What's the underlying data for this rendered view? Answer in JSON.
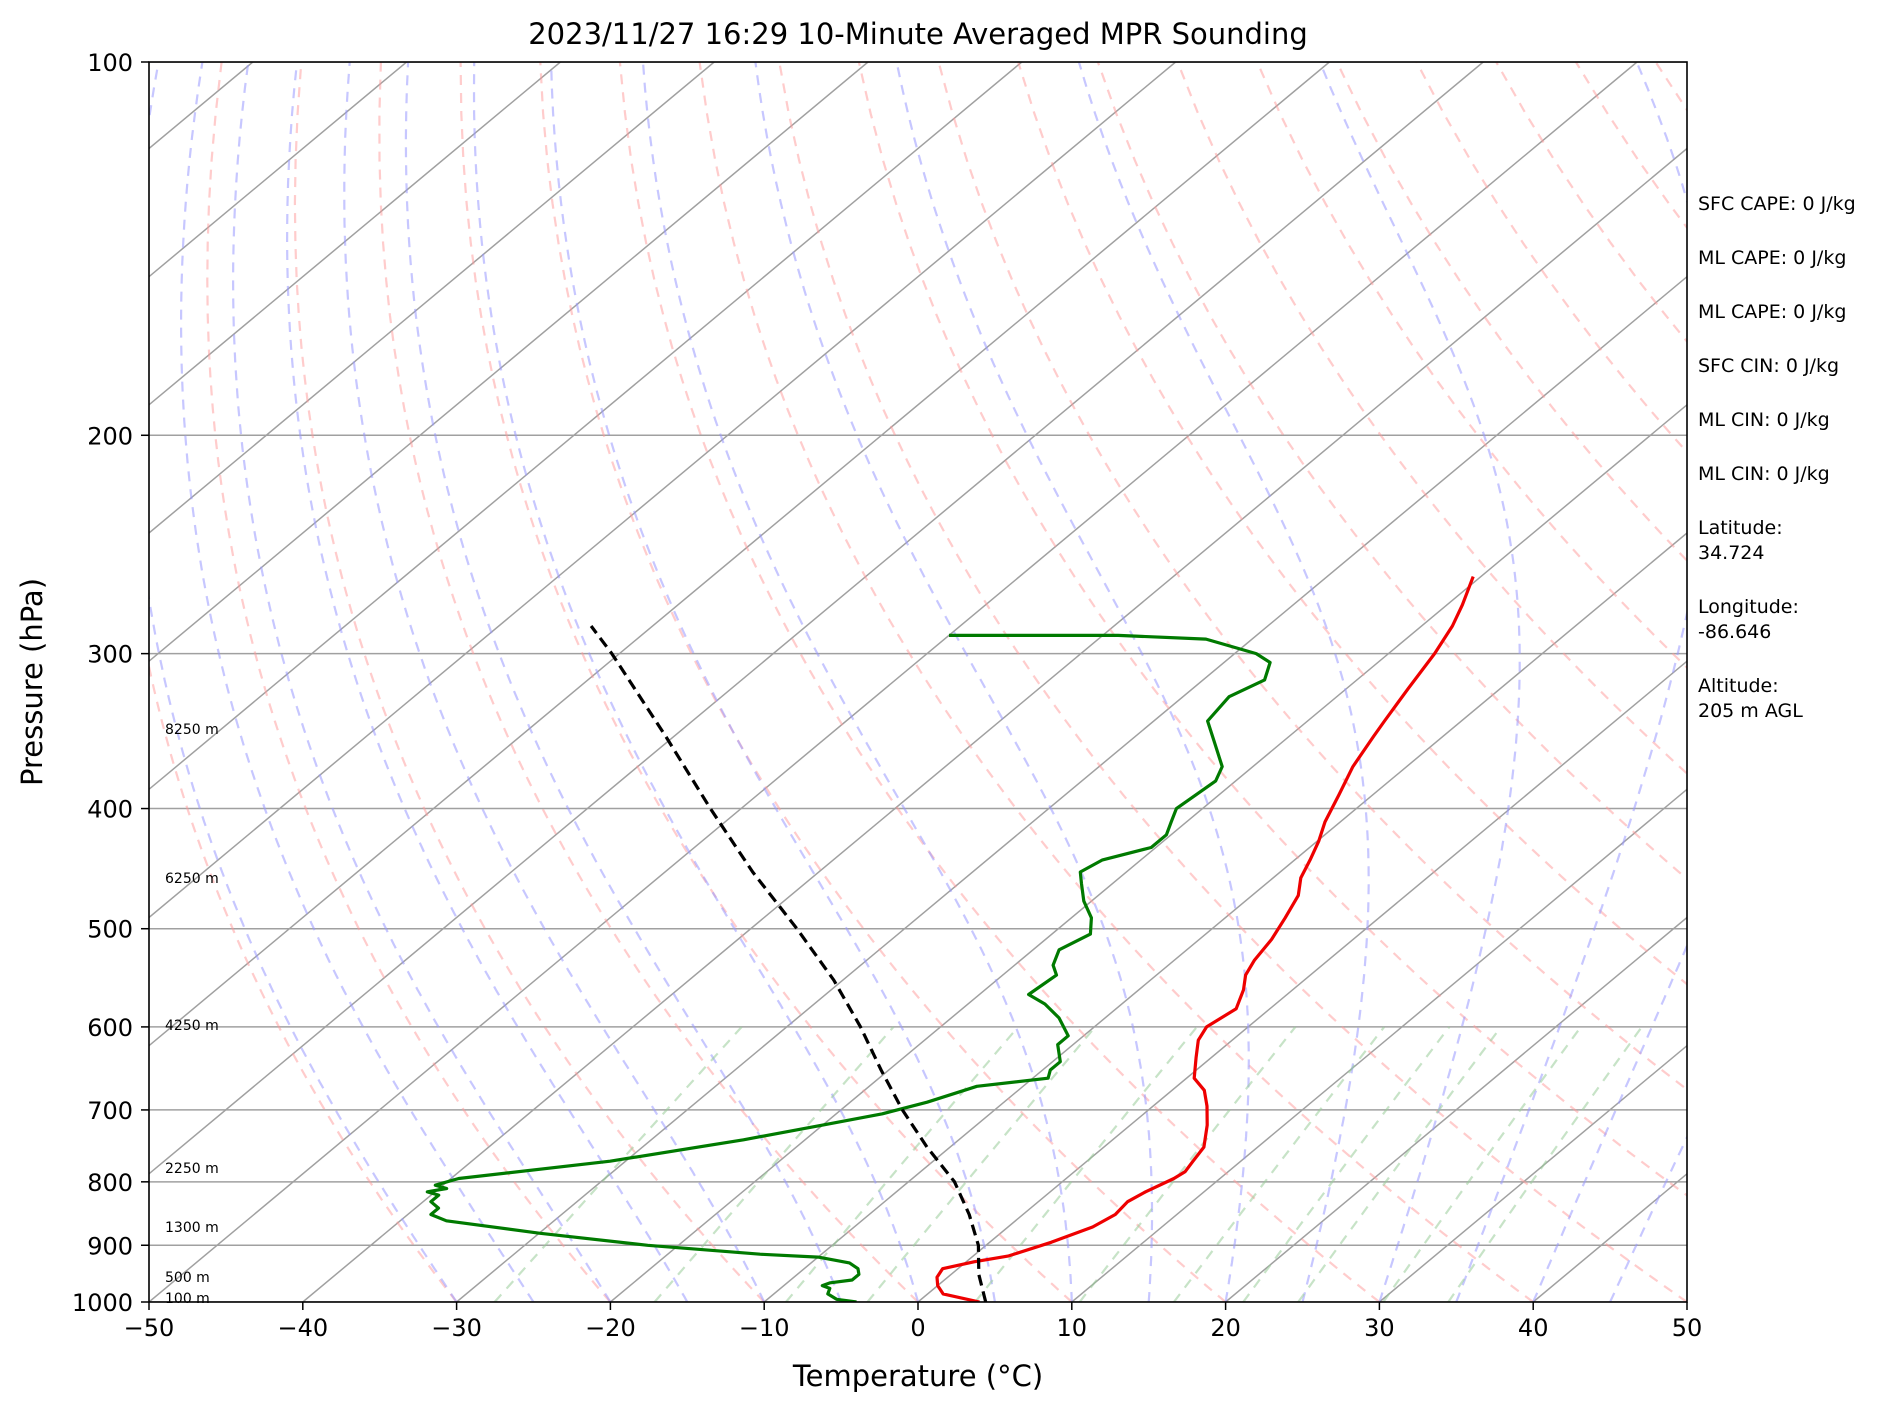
{
  "chart_data": {
    "type": "line",
    "title": "2023/11/27 16:29 10-Minute Averaged MPR Sounding",
    "xlabel": "Temperature (°C)",
    "ylabel": "Pressure (hPa)",
    "xlim": [
      -50,
      50
    ],
    "ylim": [
      1000,
      100
    ],
    "y_scale": "log",
    "skew": "skew-T (isotherms slanted)",
    "grid": true,
    "x_ticks": [
      "−50",
      "−40",
      "−30",
      "−20",
      "−10",
      "0",
      "10",
      "20",
      "30",
      "40",
      "50"
    ],
    "y_ticks": [
      "100",
      "200",
      "300",
      "400",
      "500",
      "600",
      "700",
      "800",
      "900",
      "1000"
    ],
    "colors": {
      "temperature": "#ee0000",
      "dewpoint": "#007a00",
      "parcel": "#000000",
      "isotherm": "#a0a0a0",
      "dry_adiabat": "#ff9999",
      "moist_adiabat": "#9999ff",
      "mixing_ratio": "#99cc99"
    },
    "series": [
      {
        "name": "temperature",
        "style": "solid red",
        "points": [
          [
            4,
            1000
          ],
          [
            1,
            985
          ],
          [
            0,
            970
          ],
          [
            -0.7,
            955
          ],
          [
            -1,
            940
          ],
          [
            0.5,
            928
          ],
          [
            2.3,
            918
          ],
          [
            4,
            895
          ],
          [
            5.5,
            870
          ],
          [
            6,
            850
          ],
          [
            5.8,
            830
          ],
          [
            6.2,
            815
          ],
          [
            7,
            795
          ],
          [
            7.2,
            785
          ],
          [
            6.9,
            770
          ],
          [
            6.5,
            750
          ],
          [
            5,
            720
          ],
          [
            3.5,
            695
          ],
          [
            2.1,
            675
          ],
          [
            0.5,
            660
          ],
          [
            -1,
            635
          ],
          [
            -2.2,
            615
          ],
          [
            -2.7,
            600
          ],
          [
            -2.2,
            580
          ],
          [
            -3.2,
            560
          ],
          [
            -4.2,
            545
          ],
          [
            -4.8,
            530
          ],
          [
            -5.3,
            510
          ],
          [
            -6.1,
            490
          ],
          [
            -7,
            470
          ],
          [
            -8.2,
            455
          ],
          [
            -9,
            440
          ],
          [
            -9.9,
            425
          ],
          [
            -11,
            410
          ],
          [
            -12.2,
            390
          ],
          [
            -13.5,
            370
          ],
          [
            -14.5,
            350
          ],
          [
            -15,
            340
          ],
          [
            -16,
            320
          ],
          [
            -17,
            300
          ],
          [
            -18,
            285
          ],
          [
            -19,
            274
          ],
          [
            -20.5,
            260
          ]
        ]
      },
      {
        "name": "dewpoint",
        "style": "solid green",
        "points": [
          [
            -4,
            1000
          ],
          [
            -5.5,
            995
          ],
          [
            -6.5,
            985
          ],
          [
            -6.8,
            975
          ],
          [
            -7.5,
            970
          ],
          [
            -7.2,
            965
          ],
          [
            -6,
            960
          ],
          [
            -6,
            950
          ],
          [
            -6.5,
            940
          ],
          [
            -7.5,
            930
          ],
          [
            -10,
            920
          ],
          [
            -14,
            915
          ],
          [
            -22,
            900
          ],
          [
            -30,
            880
          ],
          [
            -37,
            860
          ],
          [
            -38.5,
            850
          ],
          [
            -38.5,
            840
          ],
          [
            -39.5,
            830
          ],
          [
            -39.5,
            820
          ],
          [
            -40.5,
            815
          ],
          [
            -39.5,
            810
          ],
          [
            -40.5,
            805
          ],
          [
            -39.5,
            795
          ],
          [
            -31,
            770
          ],
          [
            -24,
            740
          ],
          [
            -20,
            720
          ],
          [
            -17,
            705
          ],
          [
            -15,
            690
          ],
          [
            -13,
            670
          ],
          [
            -9,
            660
          ],
          [
            -9.5,
            650
          ],
          [
            -9.5,
            640
          ],
          [
            -11,
            620
          ],
          [
            -11,
            610
          ],
          [
            -13,
            590
          ],
          [
            -15,
            575
          ],
          [
            -16.8,
            565
          ],
          [
            -16.5,
            545
          ],
          [
            -17.5,
            535
          ],
          [
            -18.3,
            520
          ],
          [
            -17.5,
            505
          ],
          [
            -18.7,
            490
          ],
          [
            -20.5,
            475
          ],
          [
            -22,
            460
          ],
          [
            -23,
            450
          ],
          [
            -22.5,
            440
          ],
          [
            -20.3,
            430
          ],
          [
            -20.3,
            420
          ],
          [
            -21,
            410
          ],
          [
            -21.7,
            400
          ],
          [
            -21.5,
            390
          ],
          [
            -21.3,
            380
          ],
          [
            -22,
            370
          ],
          [
            -24.2,
            355
          ],
          [
            -26.5,
            340
          ],
          [
            -27,
            325
          ],
          [
            -26,
            315
          ],
          [
            -27,
            305
          ],
          [
            -28.6,
            300
          ],
          [
            -33,
            292
          ],
          [
            -39,
            290
          ],
          [
            -50,
            290
          ]
        ]
      },
      {
        "name": "parcel",
        "style": "dashed black",
        "points": [
          [
            4.4,
            1000
          ],
          [
            1.8,
            950
          ],
          [
            -0.5,
            900
          ],
          [
            -3.5,
            850
          ],
          [
            -7,
            800
          ],
          [
            -11.5,
            750
          ],
          [
            -16,
            700
          ],
          [
            -20.5,
            650
          ],
          [
            -25.2,
            600
          ],
          [
            -30.6,
            550
          ],
          [
            -37,
            500
          ],
          [
            -44.3,
            450
          ],
          [
            -52,
            400
          ],
          [
            -60.5,
            350
          ],
          [
            -70.5,
            300
          ],
          [
            -74,
            285
          ]
        ]
      }
    ],
    "height_labels": [
      {
        "label": "8250 m",
        "p": 345
      },
      {
        "label": "6250 m",
        "p": 455
      },
      {
        "label": "4250 m",
        "p": 598
      },
      {
        "label": "2250 m",
        "p": 780
      },
      {
        "label": "1300 m",
        "p": 870
      },
      {
        "label": "500 m",
        "p": 955
      },
      {
        "label": "100 m",
        "p": 993
      }
    ],
    "annotations": [
      "SFC CAPE: 0 J/kg",
      "ML CAPE: 0 J/kg",
      "ML CAPE: 0 J/kg",
      "SFC CIN: 0 J/kg",
      "ML CIN: 0 J/kg",
      "ML CIN: 0 J/kg",
      "Latitude:\n34.724",
      "Longitude:\n-86.646",
      "Altitude:\n205 m AGL"
    ]
  }
}
